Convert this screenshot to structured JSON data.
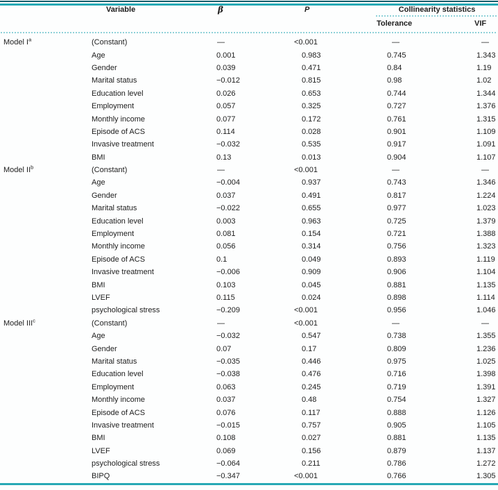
{
  "table": {
    "headers": {
      "variable": "Variable",
      "beta": "β",
      "p": "P",
      "collinearity": "Collinearity statistics",
      "tolerance": "Tolerance",
      "vif": "VIF"
    },
    "empty_value": "—",
    "models": [
      {
        "label": "Model I",
        "sup": "a",
        "rows": [
          {
            "variable": "(Constant)",
            "beta": "—",
            "p": "<0.001",
            "tolerance": "—",
            "vif": "—"
          },
          {
            "variable": "Age",
            "beta": "0.001",
            "p": "0.983",
            "tolerance": "0.745",
            "vif": "1.343"
          },
          {
            "variable": "Gender",
            "beta": "0.039",
            "p": "0.471",
            "tolerance": "0.84",
            "vif": "1.19"
          },
          {
            "variable": "Marital status",
            "beta": "−0.012",
            "p": "0.815",
            "tolerance": "0.98",
            "vif": "1.02"
          },
          {
            "variable": "Education level",
            "beta": "0.026",
            "p": "0.653",
            "tolerance": "0.744",
            "vif": "1.344"
          },
          {
            "variable": "Employment",
            "beta": "0.057",
            "p": "0.325",
            "tolerance": "0.727",
            "vif": "1.376"
          },
          {
            "variable": "Monthly income",
            "beta": "0.077",
            "p": "0.172",
            "tolerance": "0.761",
            "vif": "1.315"
          },
          {
            "variable": "Episode of ACS",
            "beta": "0.114",
            "p": "0.028",
            "tolerance": "0.901",
            "vif": "1.109"
          },
          {
            "variable": "Invasive treatment",
            "beta": "−0.032",
            "p": "0.535",
            "tolerance": "0.917",
            "vif": "1.091"
          },
          {
            "variable": "BMI",
            "beta": "0.13",
            "p": "0.013",
            "tolerance": "0.904",
            "vif": "1.107"
          }
        ]
      },
      {
        "label": "Model II",
        "sup": "b",
        "rows": [
          {
            "variable": "(Constant)",
            "beta": "—",
            "p": "<0.001",
            "tolerance": "—",
            "vif": "—"
          },
          {
            "variable": "Age",
            "beta": "−0.004",
            "p": "0.937",
            "tolerance": "0.743",
            "vif": "1.346"
          },
          {
            "variable": "Gender",
            "beta": "0.037",
            "p": "0.491",
            "tolerance": "0.817",
            "vif": "1.224"
          },
          {
            "variable": "Marital status",
            "beta": "−0.022",
            "p": "0.655",
            "tolerance": "0.977",
            "vif": "1.023"
          },
          {
            "variable": "Education level",
            "beta": "0.003",
            "p": "0.963",
            "tolerance": "0.725",
            "vif": "1.379"
          },
          {
            "variable": "Employment",
            "beta": "0.081",
            "p": "0.154",
            "tolerance": "0.721",
            "vif": "1.388"
          },
          {
            "variable": "Monthly income",
            "beta": "0.056",
            "p": "0.314",
            "tolerance": "0.756",
            "vif": "1.323"
          },
          {
            "variable": "Episode of ACS",
            "beta": "0.1",
            "p": "0.049",
            "tolerance": "0.893",
            "vif": "1.119"
          },
          {
            "variable": "Invasive treatment",
            "beta": "−0.006",
            "p": "0.909",
            "tolerance": "0.906",
            "vif": "1.104"
          },
          {
            "variable": "BMI",
            "beta": "0.103",
            "p": "0.045",
            "tolerance": "0.881",
            "vif": "1.135"
          },
          {
            "variable": "LVEF",
            "beta": "0.115",
            "p": "0.024",
            "tolerance": "0.898",
            "vif": "1.114"
          },
          {
            "variable": "psychological stress",
            "beta": "−0.209",
            "p": "<0.001",
            "tolerance": "0.956",
            "vif": "1.046"
          }
        ]
      },
      {
        "label": "Model III",
        "sup": "c",
        "rows": [
          {
            "variable": "(Constant)",
            "beta": "—",
            "p": "<0.001",
            "tolerance": "—",
            "vif": "—"
          },
          {
            "variable": "Age",
            "beta": "−0.032",
            "p": "0.547",
            "tolerance": "0.738",
            "vif": "1.355"
          },
          {
            "variable": "Gender",
            "beta": "0.07",
            "p": "0.17",
            "tolerance": "0.809",
            "vif": "1.236"
          },
          {
            "variable": "Marital status",
            "beta": "−0.035",
            "p": "0.446",
            "tolerance": "0.975",
            "vif": "1.025"
          },
          {
            "variable": "Education level",
            "beta": "−0.038",
            "p": "0.476",
            "tolerance": "0.716",
            "vif": "1.398"
          },
          {
            "variable": "Employment",
            "beta": "0.063",
            "p": "0.245",
            "tolerance": "0.719",
            "vif": "1.391"
          },
          {
            "variable": "Monthly income",
            "beta": "0.037",
            "p": "0.48",
            "tolerance": "0.754",
            "vif": "1.327"
          },
          {
            "variable": "Episode of ACS",
            "beta": "0.076",
            "p": "0.117",
            "tolerance": "0.888",
            "vif": "1.126"
          },
          {
            "variable": "Invasive treatment",
            "beta": "−0.015",
            "p": "0.757",
            "tolerance": "0.905",
            "vif": "1.105"
          },
          {
            "variable": "BMI",
            "beta": "0.108",
            "p": "0.027",
            "tolerance": "0.881",
            "vif": "1.135"
          },
          {
            "variable": "LVEF",
            "beta": "0.069",
            "p": "0.156",
            "tolerance": "0.879",
            "vif": "1.137"
          },
          {
            "variable": "psychological stress",
            "beta": "−0.064",
            "p": "0.211",
            "tolerance": "0.786",
            "vif": "1.272"
          },
          {
            "variable": "BIPQ",
            "beta": "−0.347",
            "p": "<0.001",
            "tolerance": "0.766",
            "vif": "1.305"
          }
        ]
      }
    ]
  },
  "colors": {
    "accent_teal": "#28a9b5",
    "dark_rule": "#0f5f6d",
    "dotted_teal": "#8ed1d8",
    "text": "#1d1d1d"
  }
}
